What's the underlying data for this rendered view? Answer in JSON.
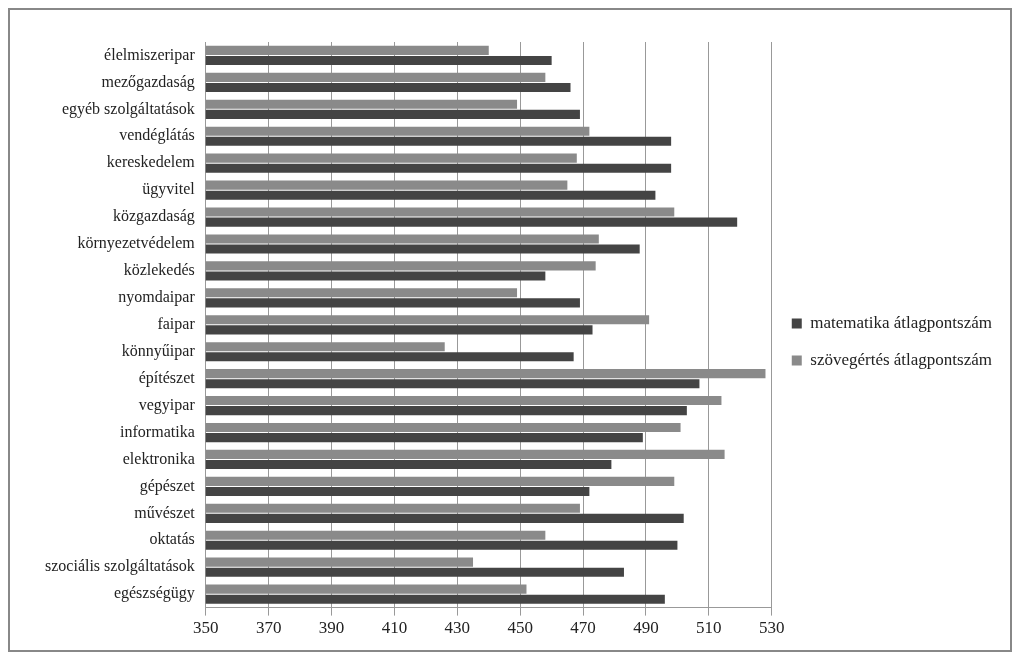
{
  "chart_data": {
    "type": "bar",
    "orientation": "horizontal",
    "categories": [
      "élelmiszeripar",
      "mezőgazdaság",
      "egyéb szolgáltatások",
      "vendéglátás",
      "kereskedelem",
      "ügyvitel",
      "közgazdaság",
      "környezetvédelem",
      "közlekedés",
      "nyomdaipar",
      "faipar",
      "könnyűipar",
      "építészet",
      "vegyipar",
      "informatika",
      "elektronika",
      "gépészet",
      "művészet",
      "oktatás",
      "szociális szolgáltatások",
      "egészségügy"
    ],
    "series": [
      {
        "name": "matematika átlagpontszám",
        "color": "#444444",
        "values": [
          460,
          466,
          469,
          498,
          498,
          493,
          519,
          488,
          458,
          469,
          473,
          467,
          507,
          503,
          489,
          479,
          472,
          502,
          500,
          483,
          496
        ]
      },
      {
        "name": "szövegértés átlagpontszám",
        "color": "#8a8a8a",
        "values": [
          440,
          458,
          449,
          472,
          468,
          465,
          499,
          475,
          474,
          449,
          491,
          426,
          528,
          514,
          501,
          515,
          499,
          469,
          458,
          435,
          452
        ]
      }
    ],
    "xlim": [
      350,
      530
    ],
    "xticks": [
      350,
      370,
      390,
      410,
      430,
      450,
      470,
      490,
      510,
      530
    ],
    "grid": "x",
    "legend": "right"
  }
}
